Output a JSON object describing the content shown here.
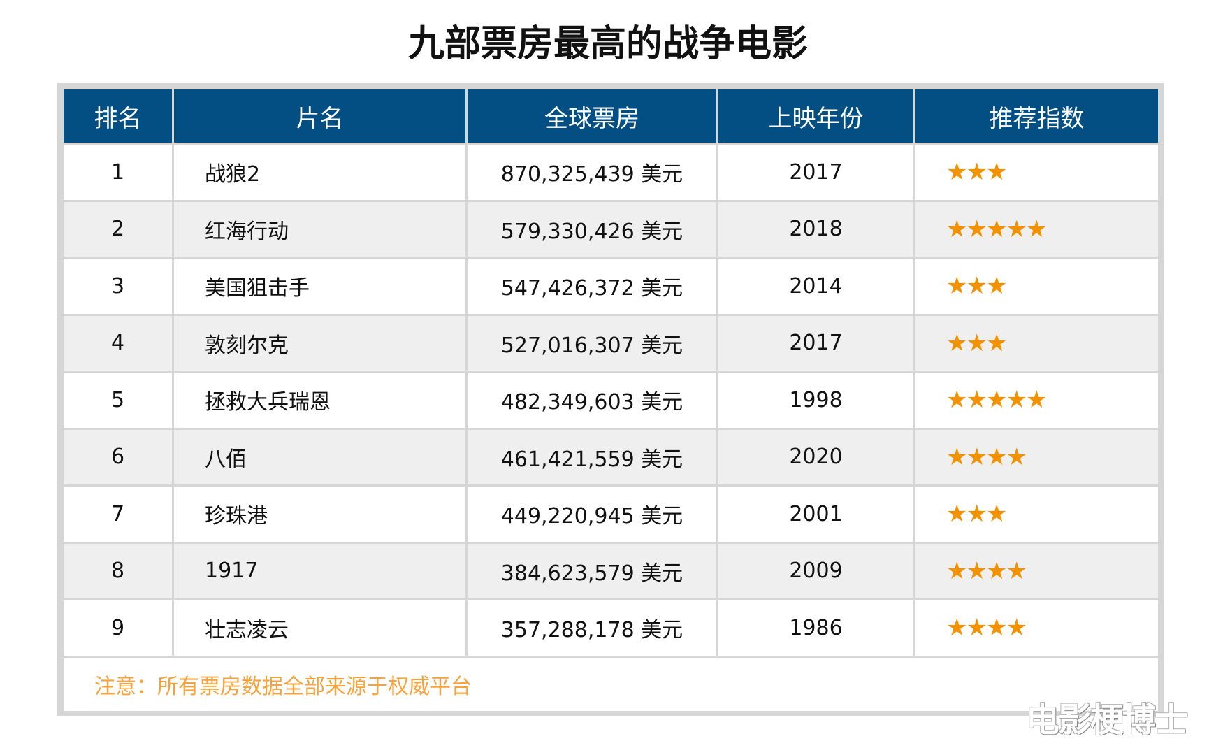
{
  "title": "九部票房最高的战争电影",
  "colors": {
    "header_bg": "#034f84",
    "star": "#f39200",
    "note": "#f7a23b",
    "border": "#d6d6d6"
  },
  "columns": [
    "排名",
    "片名",
    "全球票房",
    "上映年份",
    "推荐指数"
  ],
  "rows": [
    {
      "rank": "1",
      "name": "战狼2",
      "box_office": "870,325,439 美元",
      "year": "2017",
      "stars": 3
    },
    {
      "rank": "2",
      "name": "红海行动",
      "box_office": "579,330,426 美元",
      "year": "2018",
      "stars": 5
    },
    {
      "rank": "3",
      "name": "美国狙击手",
      "box_office": "547,426,372 美元",
      "year": "2014",
      "stars": 3
    },
    {
      "rank": "4",
      "name": "敦刻尔克",
      "box_office": "527,016,307 美元",
      "year": "2017",
      "stars": 3
    },
    {
      "rank": "5",
      "name": "拯救大兵瑞恩",
      "box_office": "482,349,603 美元",
      "year": "1998",
      "stars": 5
    },
    {
      "rank": "6",
      "name": "八佰",
      "box_office": "461,421,559 美元",
      "year": "2020",
      "stars": 4
    },
    {
      "rank": "7",
      "name": "珍珠港",
      "box_office": "449,220,945 美元",
      "year": "2001",
      "stars": 3
    },
    {
      "rank": "8",
      "name": "1917",
      "box_office": "384,623,579 美元",
      "year": "2009",
      "stars": 4
    },
    {
      "rank": "9",
      "name": "壮志凌云",
      "box_office": "357,288,178 美元",
      "year": "1986",
      "stars": 4
    }
  ],
  "note": "注意：所有票房数据全部来源于权威平台",
  "watermark": "电影梗博士"
}
